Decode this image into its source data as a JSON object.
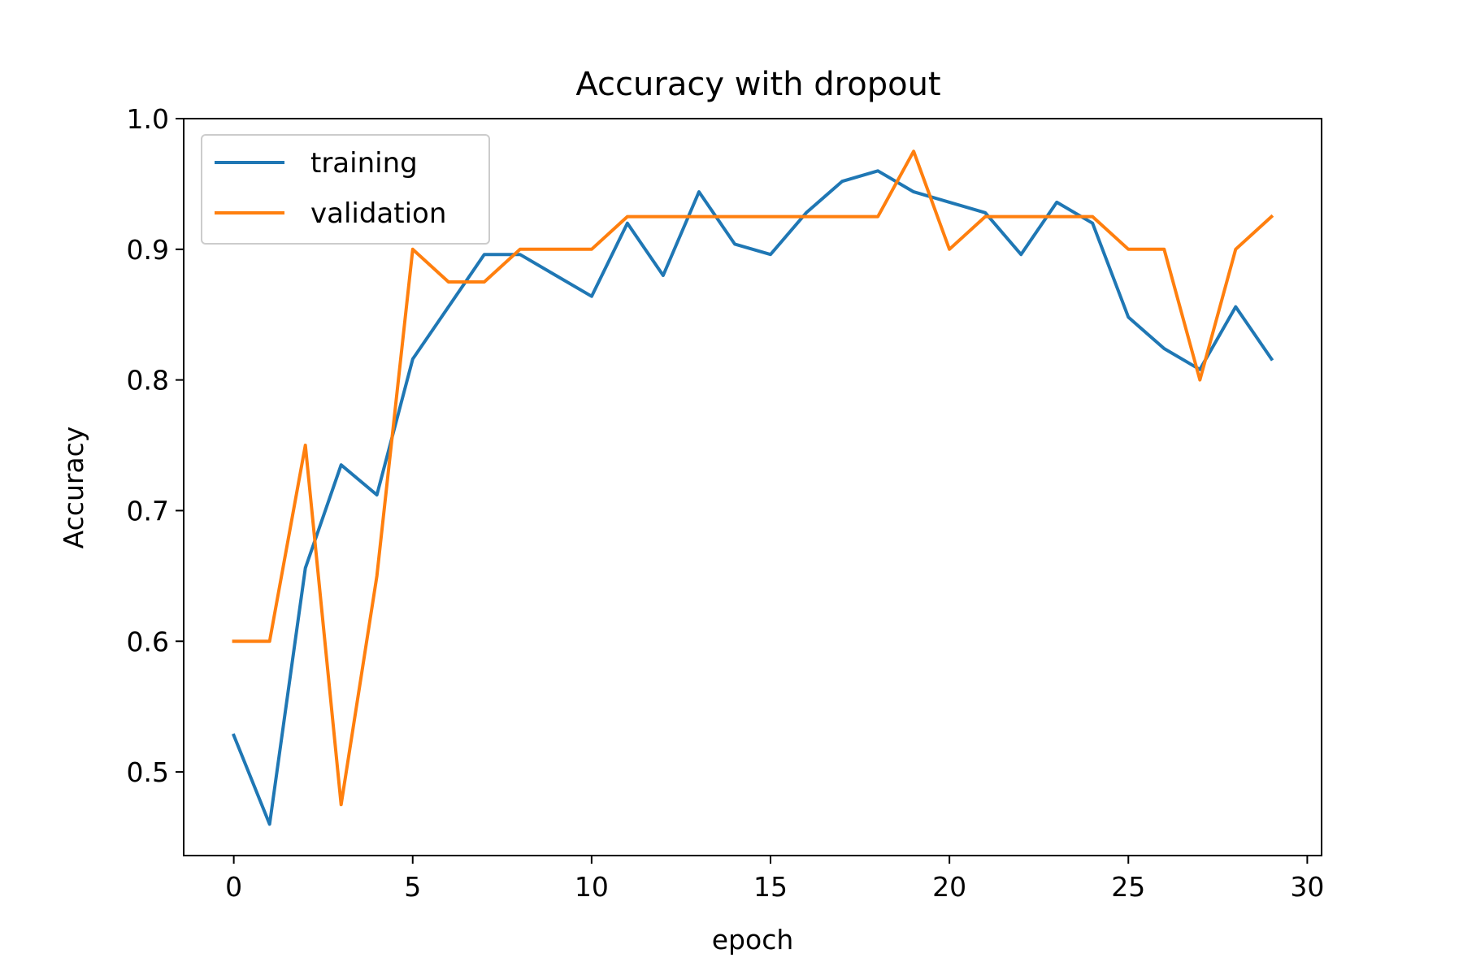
{
  "chart_data": {
    "type": "line",
    "title": "Accuracy with dropout",
    "xlabel": "epoch",
    "ylabel": "Accuracy",
    "xlim": [
      -1.4,
      30.4
    ],
    "ylim": [
      0.436,
      1.0
    ],
    "xticks": [
      0,
      5,
      10,
      15,
      20,
      25,
      30
    ],
    "yticks": [
      0.5,
      0.6,
      0.7,
      0.8,
      0.9,
      1.0
    ],
    "xtick_labels": [
      "0",
      "5",
      "10",
      "15",
      "20",
      "25",
      "30"
    ],
    "ytick_labels": [
      "0.5",
      "0.6",
      "0.7",
      "0.8",
      "0.9",
      "1.0"
    ],
    "grid": false,
    "legend_position": "top-left",
    "x": [
      0,
      1,
      2,
      3,
      4,
      5,
      6,
      7,
      8,
      9,
      10,
      11,
      12,
      13,
      14,
      15,
      16,
      17,
      18,
      19,
      20,
      21,
      22,
      23,
      24,
      25,
      26,
      27,
      28,
      29
    ],
    "series": [
      {
        "name": "training",
        "color": "#1f77b4",
        "values": [
          0.528,
          0.46,
          0.656,
          0.735,
          0.712,
          0.816,
          0.856,
          0.896,
          0.896,
          0.88,
          0.864,
          0.92,
          0.88,
          0.944,
          0.904,
          0.896,
          0.928,
          0.952,
          0.96,
          0.944,
          0.936,
          0.928,
          0.896,
          0.936,
          0.92,
          0.848,
          0.824,
          0.808,
          0.856,
          0.816
        ]
      },
      {
        "name": "validation",
        "color": "#ff7f0e",
        "values": [
          0.6,
          0.6,
          0.75,
          0.475,
          0.65,
          0.9,
          0.875,
          0.875,
          0.9,
          0.9,
          0.9,
          0.925,
          0.925,
          0.925,
          0.925,
          0.925,
          0.925,
          0.925,
          0.925,
          0.975,
          0.9,
          0.925,
          0.925,
          0.925,
          0.925,
          0.9,
          0.9,
          0.8,
          0.9,
          0.925
        ]
      }
    ]
  }
}
